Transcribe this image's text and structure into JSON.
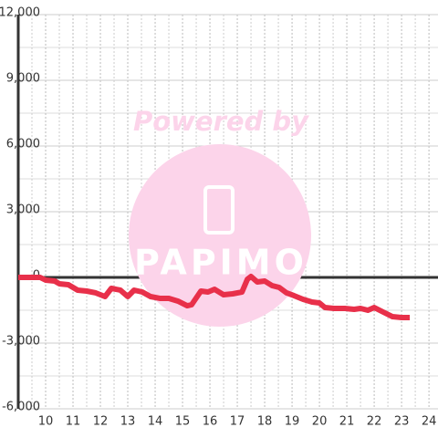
{
  "chart_data": {
    "type": "line",
    "watermark": {
      "line1": "Powered by",
      "line2": "PAPIMO"
    },
    "x": [
      9.0,
      9.8,
      10.0,
      10.33,
      10.5,
      10.83,
      11.17,
      11.5,
      11.83,
      12.17,
      12.4,
      12.73,
      13.0,
      13.23,
      13.53,
      13.83,
      14.17,
      14.5,
      14.83,
      15.17,
      15.33,
      15.67,
      15.93,
      16.17,
      16.5,
      16.83,
      17.17,
      17.37,
      17.5,
      17.73,
      18.0,
      18.27,
      18.53,
      18.8,
      19.07,
      19.4,
      19.73,
      20.0,
      20.2,
      20.53,
      20.93,
      21.27,
      21.5,
      21.77,
      22.0,
      22.33,
      22.67,
      23.0,
      23.3
    ],
    "series": [
      {
        "color": "#e8304a",
        "values": [
          0,
          0,
          -125,
          -167,
          -290,
          -333,
          -583,
          -625,
          -708,
          -875,
          -500,
          -583,
          -875,
          -583,
          -667,
          -875,
          -958,
          -958,
          -1083,
          -1292,
          -1250,
          -625,
          -667,
          -542,
          -792,
          -750,
          -667,
          -83,
          42,
          -208,
          -167,
          -375,
          -458,
          -708,
          -833,
          -1000,
          -1125,
          -1167,
          -1375,
          -1417,
          -1417,
          -1458,
          -1417,
          -1500,
          -1375,
          -1583,
          -1792,
          -1833,
          -1833
        ]
      }
    ],
    "xlim": [
      9,
      24.33
    ],
    "ylim": [
      -6000,
      12000
    ],
    "xticks": [
      10,
      11,
      12,
      13,
      14,
      15,
      16,
      17,
      18,
      19,
      20,
      21,
      22,
      23,
      24
    ],
    "yticks": [
      {
        "value": -6000,
        "label": "-6,000"
      },
      {
        "value": -3000,
        "label": "-3,000"
      },
      0,
      {
        "value": 3000,
        "label": "3,000"
      },
      {
        "value": 6000,
        "label": "6,000"
      },
      {
        "value": 9000,
        "label": "9,000"
      },
      {
        "value": 12000,
        "label": "12,000"
      }
    ],
    "grid": true
  }
}
